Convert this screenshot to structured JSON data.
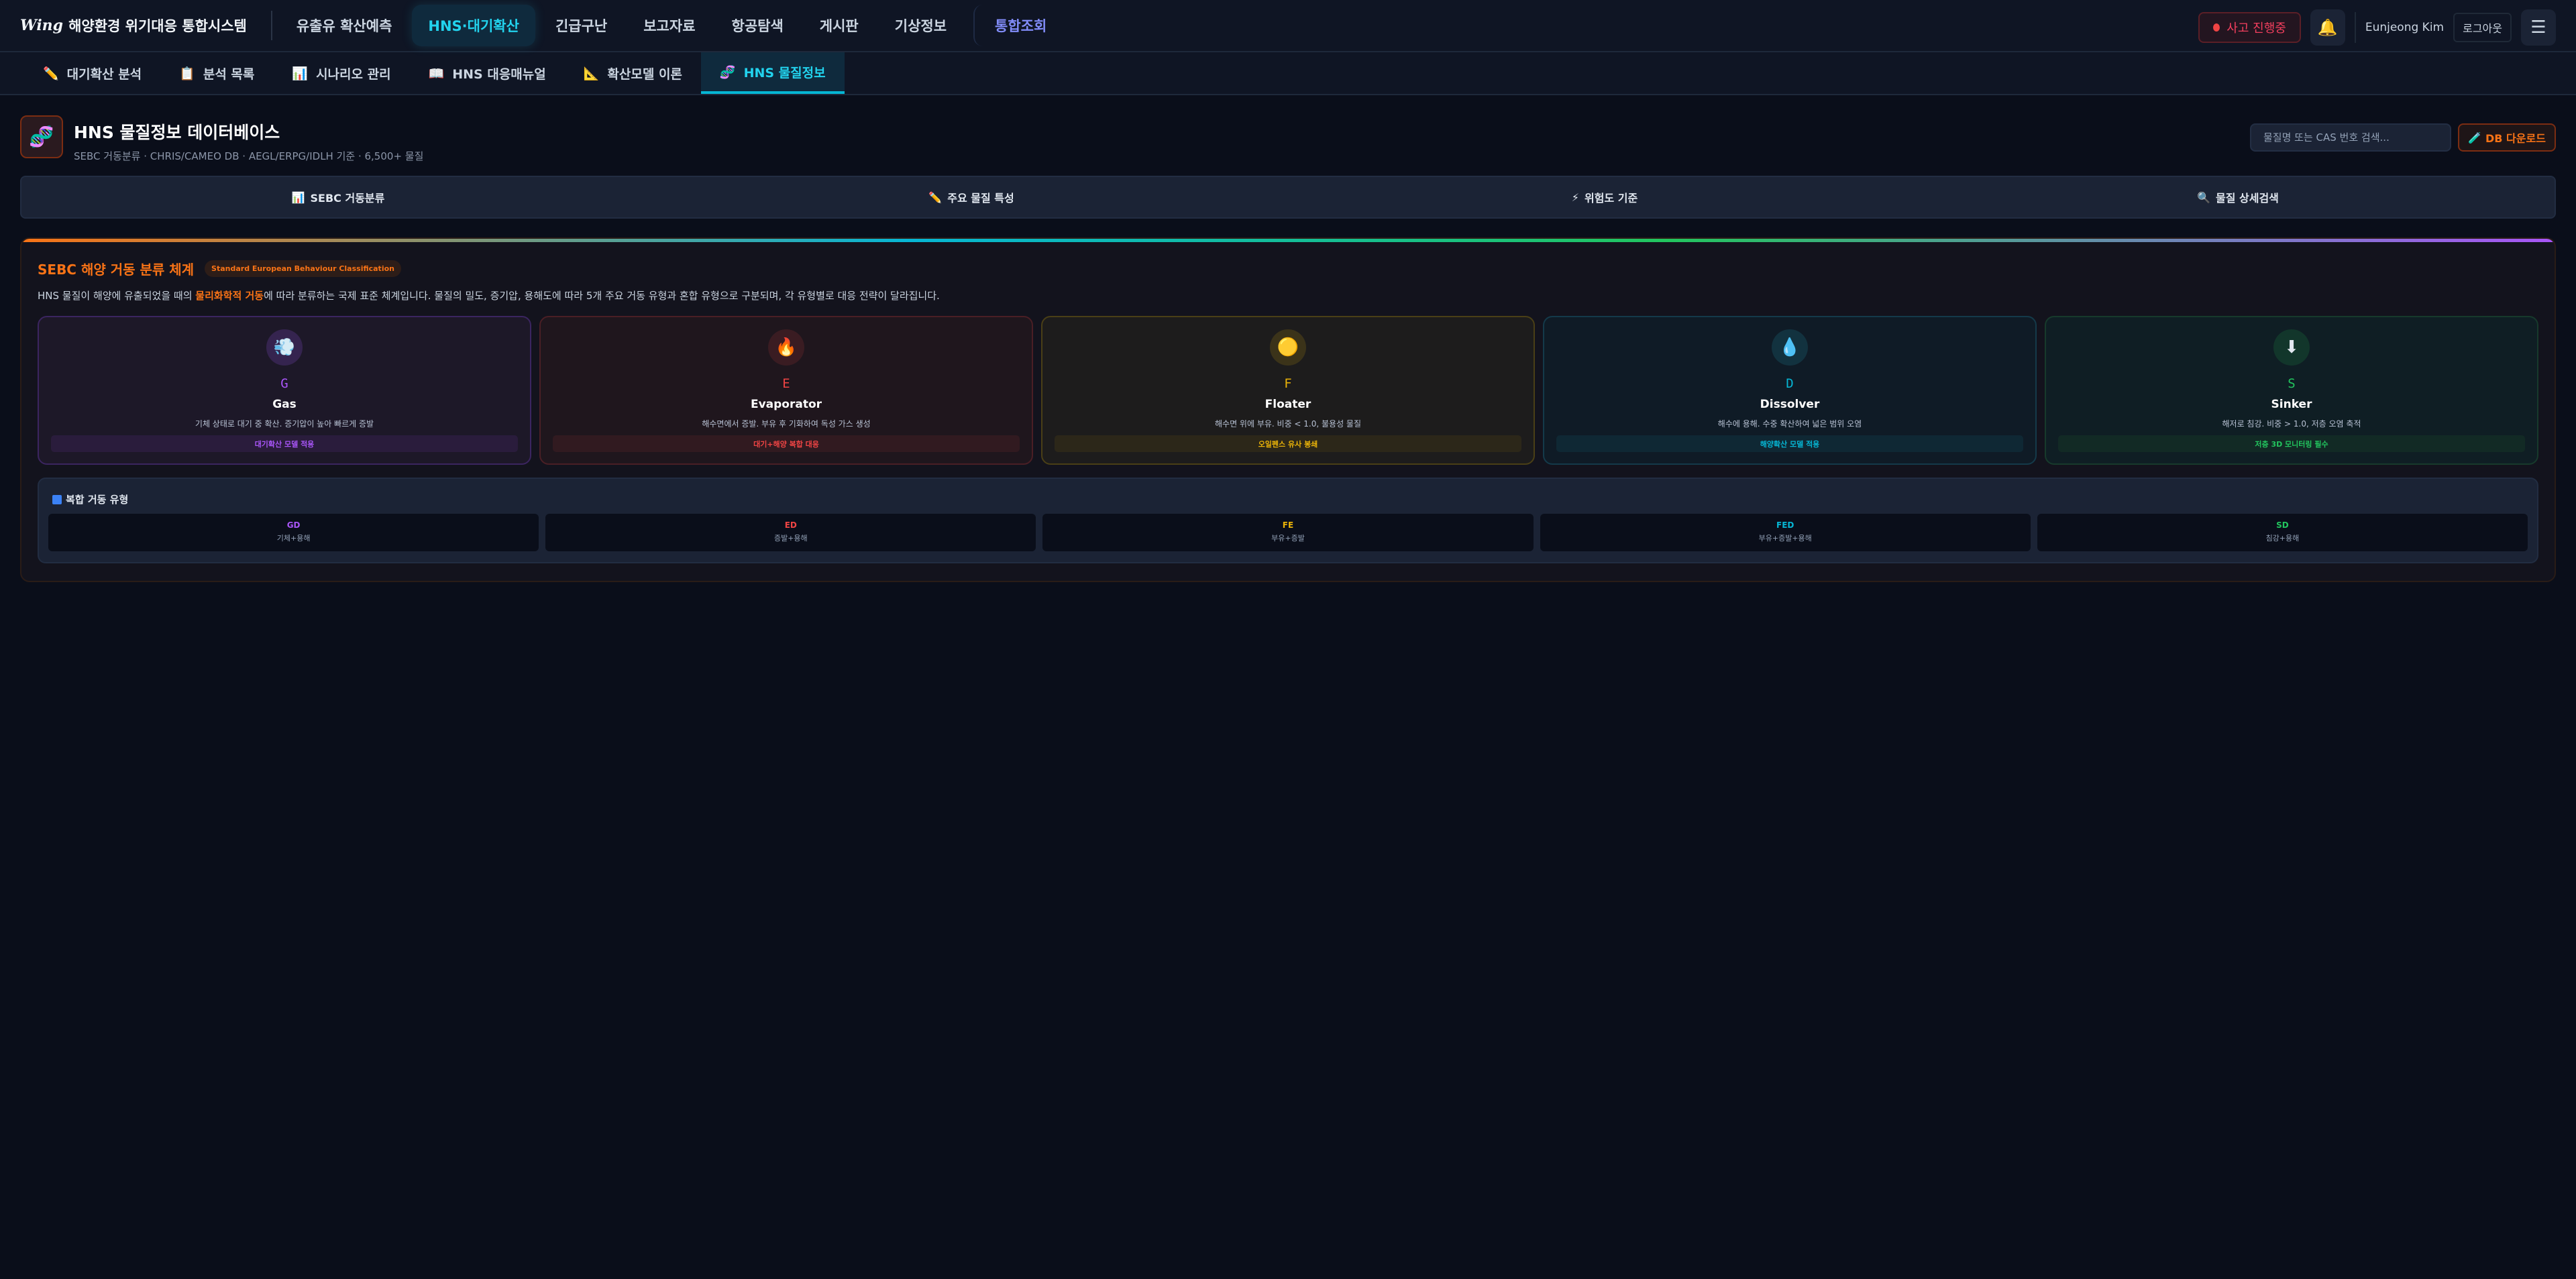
{
  "app": {
    "logo": "Wing",
    "title": "해양환경 위기대응 통합시스템"
  },
  "nav": {
    "items": [
      "유출유 확산예측",
      "HNS·대기확산",
      "긴급구난",
      "보고자료",
      "항공탐색",
      "게시판",
      "기상정보"
    ],
    "special": "통합조회",
    "active": 1
  },
  "header_right": {
    "incident": "사고 진행중",
    "user": "Eunjeong Kim",
    "logout": "로그아웃"
  },
  "subnav": {
    "items": [
      {
        "icon": "✏️",
        "label": "대기확산 분석"
      },
      {
        "icon": "📋",
        "label": "분석 목록"
      },
      {
        "icon": "📊",
        "label": "시나리오 관리"
      },
      {
        "icon": "📖",
        "label": "HNS 대응매뉴얼"
      },
      {
        "icon": "📐",
        "label": "확산모델 이론"
      },
      {
        "icon": "🧬",
        "label": "HNS 물질정보"
      }
    ],
    "active": 5
  },
  "page": {
    "title": "HNS 물질정보 데이터베이스",
    "subtitle": "SEBC 거동분류 · CHRIS/CAMEO DB · AEGL/ERPG/IDLH 기준 · 6,500+ 물질",
    "search_placeholder": "물질명 또는 CAS 번호 검색...",
    "download": "DB 다운로드"
  },
  "tabs": [
    {
      "icon": "📊",
      "label": "SEBC 거동분류"
    },
    {
      "icon": "✏️",
      "label": "주요 물질 특성"
    },
    {
      "icon": "⚡",
      "label": "위험도 기준"
    },
    {
      "icon": "🔍",
      "label": "물질 상세검색"
    }
  ],
  "sebc": {
    "title": "SEBC 해양 거동 분류 체계",
    "badge": "Standard European Behaviour Classification",
    "desc_pre": "HNS 물질이 해양에 유출되었을 때의 ",
    "desc_em": "물리화학적 거동",
    "desc_post": "에 따라 분류하는 국제 표준 체계입니다. 물질의 밀도, 증기압, 용해도에 따라 5개 주요 거동 유형과 혼합 유형으로 구분되며, 각 유형별로 대응 전략이 달라집니다.",
    "types": [
      {
        "icon": "💨",
        "code": "G",
        "name": "Gas",
        "desc": "기체 상태로 대기 중 확산. 증기압이 높아 빠르게 증발",
        "tag": "대기확산 모델 적용",
        "color": "#a855f7",
        "bg": "#1d1828",
        "border": "#3b2560",
        "iconbg": "#35244f",
        "tagbg": "#2a1c3c"
      },
      {
        "icon": "🔥",
        "code": "E",
        "name": "Evaporator",
        "desc": "해수면에서 증발. 부유 후 기화하여 독성 가스 생성",
        "tag": "대기+해양 복합 대응",
        "color": "#ef4444",
        "bg": "#1f161d",
        "border": "#4a1f25",
        "iconbg": "#3a1c22",
        "tagbg": "#311a20"
      },
      {
        "icon": "🟡",
        "code": "F",
        "name": "Floater",
        "desc": "해수면 위에 부유. 비중 < 1.0, 불용성 물질",
        "tag": "오일펜스 유사 봉쇄",
        "color": "#eab308",
        "bg": "#1d1c1c",
        "border": "#4a3f16",
        "iconbg": "#3b3319",
        "tagbg": "#2c2719"
      },
      {
        "icon": "💧",
        "code": "D",
        "name": "Dissolver",
        "desc": "해수에 용해. 수중 확산하여 넓은 범위 오염",
        "tag": "해양확산 모델 적용",
        "color": "#06b6d4",
        "bg": "#0f1b26",
        "border": "#143a4a",
        "iconbg": "#12323f",
        "tagbg": "#0f2834"
      },
      {
        "icon": "⬇",
        "code": "S",
        "name": "Sinker",
        "desc": "해저로 침강. 비중 > 1.0, 저층 오염 축적",
        "tag": "저층 3D 모니터링 필수",
        "color": "#22c55e",
        "bg": "#0f1e24",
        "border": "#173a2c",
        "iconbg": "#12362b",
        "tagbg": "#122a25"
      }
    ],
    "composite": {
      "icon": "🔀",
      "title": "복합 거동 유형",
      "items": [
        {
          "code": "GD",
          "label": "기체+용해",
          "color": "#a855f7"
        },
        {
          "code": "ED",
          "label": "증발+용해",
          "color": "#ef4444"
        },
        {
          "code": "FE",
          "label": "부유+증발",
          "color": "#eab308"
        },
        {
          "code": "FED",
          "label": "부유+증발+용해",
          "color": "#06b6d4"
        },
        {
          "code": "SD",
          "label": "침강+용해",
          "color": "#22c55e"
        }
      ]
    }
  }
}
